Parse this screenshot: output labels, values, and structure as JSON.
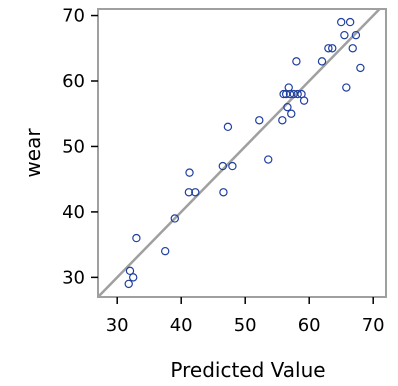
{
  "chart_data": {
    "type": "scatter",
    "title": "",
    "xlabel": "Predicted Value",
    "ylabel": "wear",
    "xlim": [
      27,
      72
    ],
    "ylim": [
      27,
      71
    ],
    "xticks": [
      30,
      40,
      50,
      60,
      70
    ],
    "yticks": [
      30,
      40,
      50,
      60,
      70
    ],
    "grid": false,
    "reference_line": "y = x",
    "colors": {
      "point": "#1f3f9f",
      "reference_line": "#a0a0a0",
      "frame": "#a0a0a0"
    },
    "series": [
      {
        "points": [
          {
            "x": 31.8,
            "y": 29.0
          },
          {
            "x": 32.0,
            "y": 31.0
          },
          {
            "x": 32.5,
            "y": 30.0
          },
          {
            "x": 33.0,
            "y": 36.0
          },
          {
            "x": 37.5,
            "y": 34.0
          },
          {
            "x": 39.0,
            "y": 39.0
          },
          {
            "x": 41.2,
            "y": 43.0
          },
          {
            "x": 41.3,
            "y": 46.0
          },
          {
            "x": 42.2,
            "y": 43.0
          },
          {
            "x": 46.5,
            "y": 47.0
          },
          {
            "x": 46.6,
            "y": 43.0
          },
          {
            "x": 47.3,
            "y": 53.0
          },
          {
            "x": 48.0,
            "y": 47.0
          },
          {
            "x": 52.2,
            "y": 54.0
          },
          {
            "x": 53.6,
            "y": 48.0
          },
          {
            "x": 55.8,
            "y": 54.0
          },
          {
            "x": 56.0,
            "y": 58.0
          },
          {
            "x": 56.4,
            "y": 58.0
          },
          {
            "x": 56.6,
            "y": 56.0
          },
          {
            "x": 56.8,
            "y": 59.0
          },
          {
            "x": 57.0,
            "y": 58.0
          },
          {
            "x": 57.2,
            "y": 55.0
          },
          {
            "x": 57.6,
            "y": 58.0
          },
          {
            "x": 58.0,
            "y": 63.0
          },
          {
            "x": 58.2,
            "y": 58.0
          },
          {
            "x": 58.8,
            "y": 58.0
          },
          {
            "x": 59.2,
            "y": 57.0
          },
          {
            "x": 62.0,
            "y": 63.0
          },
          {
            "x": 63.0,
            "y": 65.0
          },
          {
            "x": 63.6,
            "y": 65.0
          },
          {
            "x": 65.0,
            "y": 69.0
          },
          {
            "x": 65.5,
            "y": 67.0
          },
          {
            "x": 65.8,
            "y": 59.0
          },
          {
            "x": 66.4,
            "y": 69.0
          },
          {
            "x": 66.8,
            "y": 65.0
          },
          {
            "x": 67.3,
            "y": 67.0
          },
          {
            "x": 68.0,
            "y": 62.0
          }
        ]
      }
    ]
  }
}
